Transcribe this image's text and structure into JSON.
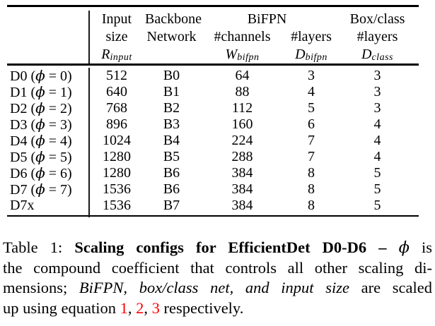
{
  "colors": {
    "text": "#000000",
    "rule": "#000000",
    "equation_link_red": "#f90404",
    "background": "#ffffff"
  },
  "table": {
    "phi_symbol": "ϕ",
    "header": {
      "row_label_column": "",
      "bifpn_group": "BiFPN",
      "input": {
        "line1": "Input",
        "line2": "size",
        "sym_base": "R",
        "sym_sub": "input"
      },
      "backbone": {
        "line1": "Backbone",
        "line2": "Network"
      },
      "channels": {
        "line2": "#channels",
        "sym_base": "W",
        "sym_sub": "bifpn"
      },
      "layers": {
        "line2": "#layers",
        "sym_base": "D",
        "sym_sub": "bifpn"
      },
      "boxclass": {
        "line1": "Box/class",
        "line2": "#layers",
        "sym_base": "D",
        "sym_sub": "class"
      }
    },
    "rows": [
      {
        "label": "D0 (ϕ = 0)",
        "input_size": "512",
        "backbone": "B0",
        "bifpn_channels": "64",
        "bifpn_layers": "3",
        "boxclass_layers": "3"
      },
      {
        "label": "D1 (ϕ = 1)",
        "input_size": "640",
        "backbone": "B1",
        "bifpn_channels": "88",
        "bifpn_layers": "4",
        "boxclass_layers": "3"
      },
      {
        "label": "D2 (ϕ = 2)",
        "input_size": "768",
        "backbone": "B2",
        "bifpn_channels": "112",
        "bifpn_layers": "5",
        "boxclass_layers": "3"
      },
      {
        "label": "D3 (ϕ = 3)",
        "input_size": "896",
        "backbone": "B3",
        "bifpn_channels": "160",
        "bifpn_layers": "6",
        "boxclass_layers": "4"
      },
      {
        "label": "D4 (ϕ = 4)",
        "input_size": "1024",
        "backbone": "B4",
        "bifpn_channels": "224",
        "bifpn_layers": "7",
        "boxclass_layers": "4"
      },
      {
        "label": "D5 (ϕ = 5)",
        "input_size": "1280",
        "backbone": "B5",
        "bifpn_channels": "288",
        "bifpn_layers": "7",
        "boxclass_layers": "4"
      },
      {
        "label": "D6 (ϕ = 6)",
        "input_size": "1280",
        "backbone": "B6",
        "bifpn_channels": "384",
        "bifpn_layers": "8",
        "boxclass_layers": "5"
      },
      {
        "label": "D7 (ϕ = 7)",
        "input_size": "1536",
        "backbone": "B6",
        "bifpn_channels": "384",
        "bifpn_layers": "8",
        "boxclass_layers": "5"
      },
      {
        "label": "D7x",
        "input_size": "1536",
        "backbone": "B7",
        "bifpn_channels": "384",
        "bifpn_layers": "8",
        "boxclass_layers": "5"
      }
    ]
  },
  "caption": {
    "lines": [
      {
        "justify": true,
        "segments": [
          {
            "t": "Table 1: ",
            "s": "plain"
          },
          {
            "t": "Scaling configs for EfficientDet D0-D6 – ",
            "s": "bold"
          },
          {
            "t": "ϕ",
            "s": "mathit"
          },
          {
            "t": " is",
            "s": "plain"
          }
        ]
      },
      {
        "justify": true,
        "segments": [
          {
            "t": "the compound coefficient that controls all other scaling di-",
            "s": "plain"
          }
        ]
      },
      {
        "justify": true,
        "segments": [
          {
            "t": "mensions; ",
            "s": "plain"
          },
          {
            "t": "BiFPN, box/class net, and input size",
            "s": "italic"
          },
          {
            "t": " are scaled",
            "s": "plain"
          }
        ]
      },
      {
        "justify": false,
        "segments": [
          {
            "t": "up using equation ",
            "s": "plain"
          },
          {
            "t": "1",
            "s": "red"
          },
          {
            "t": ", ",
            "s": "plain"
          },
          {
            "t": "2",
            "s": "red"
          },
          {
            "t": ", ",
            "s": "plain"
          },
          {
            "t": "3",
            "s": "red"
          },
          {
            "t": " respectively.",
            "s": "plain"
          }
        ]
      }
    ]
  }
}
